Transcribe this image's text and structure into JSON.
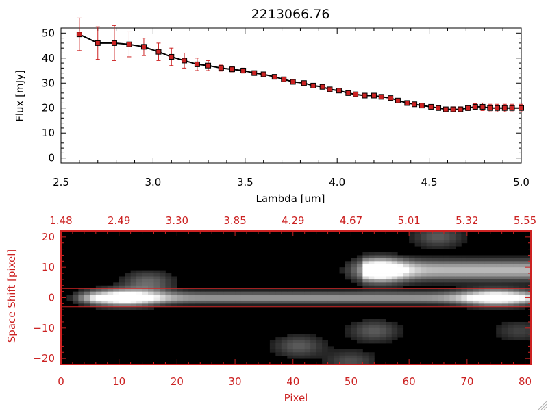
{
  "chart_data": [
    {
      "type": "line",
      "title": "2213066.76",
      "xlabel": "Lambda [um]",
      "ylabel": "Flux [mJy]",
      "xlim": [
        2.5,
        5.0
      ],
      "ylim": [
        -2,
        52
      ],
      "xticks": [
        "2.5",
        "3.0",
        "3.5",
        "4.0",
        "4.5",
        "5.0"
      ],
      "yticks": [
        "0",
        "10",
        "20",
        "30",
        "40",
        "50"
      ],
      "series": [
        {
          "marker": "square",
          "line_color": "#000000",
          "marker_color": "#cc2222",
          "errorbar_color": "#cc2222",
          "x": [
            2.6,
            2.7,
            2.79,
            2.87,
            2.95,
            3.03,
            3.1,
            3.17,
            3.24,
            3.3,
            3.37,
            3.43,
            3.49,
            3.55,
            3.6,
            3.66,
            3.71,
            3.76,
            3.82,
            3.87,
            3.92,
            3.96,
            4.01,
            4.06,
            4.1,
            4.15,
            4.2,
            4.24,
            4.29,
            4.33,
            4.38,
            4.42,
            4.46,
            4.51,
            4.55,
            4.59,
            4.63,
            4.67,
            4.71,
            4.75,
            4.79,
            4.83,
            4.87,
            4.91,
            4.95,
            5.0
          ],
          "y": [
            49.5,
            46.0,
            46.0,
            45.5,
            44.5,
            42.5,
            40.5,
            39.0,
            37.5,
            37.0,
            36.0,
            35.5,
            35.0,
            34.0,
            33.5,
            32.5,
            31.5,
            30.5,
            30.0,
            29.0,
            28.5,
            27.5,
            27.0,
            26.0,
            25.5,
            25.0,
            25.0,
            24.5,
            24.0,
            23.0,
            22.0,
            21.5,
            21.0,
            20.5,
            20.0,
            19.5,
            19.5,
            19.5,
            20.0,
            20.5,
            20.5,
            20.0,
            20.0,
            20.0,
            20.0,
            20.0
          ],
          "err": [
            6.5,
            6.5,
            7.0,
            5.0,
            3.5,
            3.5,
            3.5,
            3.0,
            2.5,
            2.0,
            1.2,
            1.0,
            1.0,
            0.8,
            0.8,
            0.8,
            0.7,
            0.7,
            0.7,
            0.7,
            0.7,
            0.7,
            0.7,
            0.7,
            0.7,
            0.7,
            0.7,
            0.7,
            0.7,
            0.7,
            0.7,
            0.7,
            0.7,
            0.7,
            0.7,
            0.7,
            1.0,
            1.0,
            1.0,
            1.2,
            1.5,
            1.5,
            1.5,
            1.5,
            1.5,
            1.5
          ]
        }
      ]
    },
    {
      "type": "heatmap",
      "xlabel": "Pixel",
      "ylabel": "Space Shift [pixel]",
      "xlim": [
        0,
        81
      ],
      "ylim": [
        -22,
        22
      ],
      "xticks": [
        "0",
        "10",
        "20",
        "30",
        "40",
        "50",
        "60",
        "70",
        "80"
      ],
      "yticks": [
        "−20",
        "−10",
        "0",
        "10",
        "20"
      ],
      "top_axis_label_values": [
        "1.48",
        "2.49",
        "3.30",
        "3.85",
        "4.29",
        "4.67",
        "5.01",
        "5.32",
        "5.55"
      ],
      "colormap": "grayscale",
      "axis_color": "#cc2222",
      "extraction_window": [
        -3,
        3
      ],
      "features": [
        {
          "kind": "trace",
          "y": 0,
          "x_range": [
            5,
            81
          ],
          "peaks": [
            {
              "x": 11,
              "amp": 1.0
            },
            {
              "x": 75,
              "amp": 0.9
            }
          ]
        },
        {
          "kind": "blob",
          "x": 55,
          "y": 9,
          "amp": 1.0
        },
        {
          "kind": "band",
          "y": 9,
          "x_range": [
            52,
            81
          ],
          "amp": 0.7
        },
        {
          "kind": "blob",
          "x": 15,
          "y": 5,
          "amp": 0.35
        },
        {
          "kind": "blob",
          "x": 65,
          "y": 20,
          "amp": 0.3
        },
        {
          "kind": "blob",
          "x": 41,
          "y": -16,
          "amp": 0.3
        },
        {
          "kind": "blob",
          "x": 54,
          "y": -11,
          "amp": 0.3
        },
        {
          "kind": "blob",
          "x": 79,
          "y": -11,
          "amp": 0.2
        },
        {
          "kind": "blob",
          "x": 50,
          "y": -21,
          "amp": 0.25
        }
      ]
    }
  ]
}
